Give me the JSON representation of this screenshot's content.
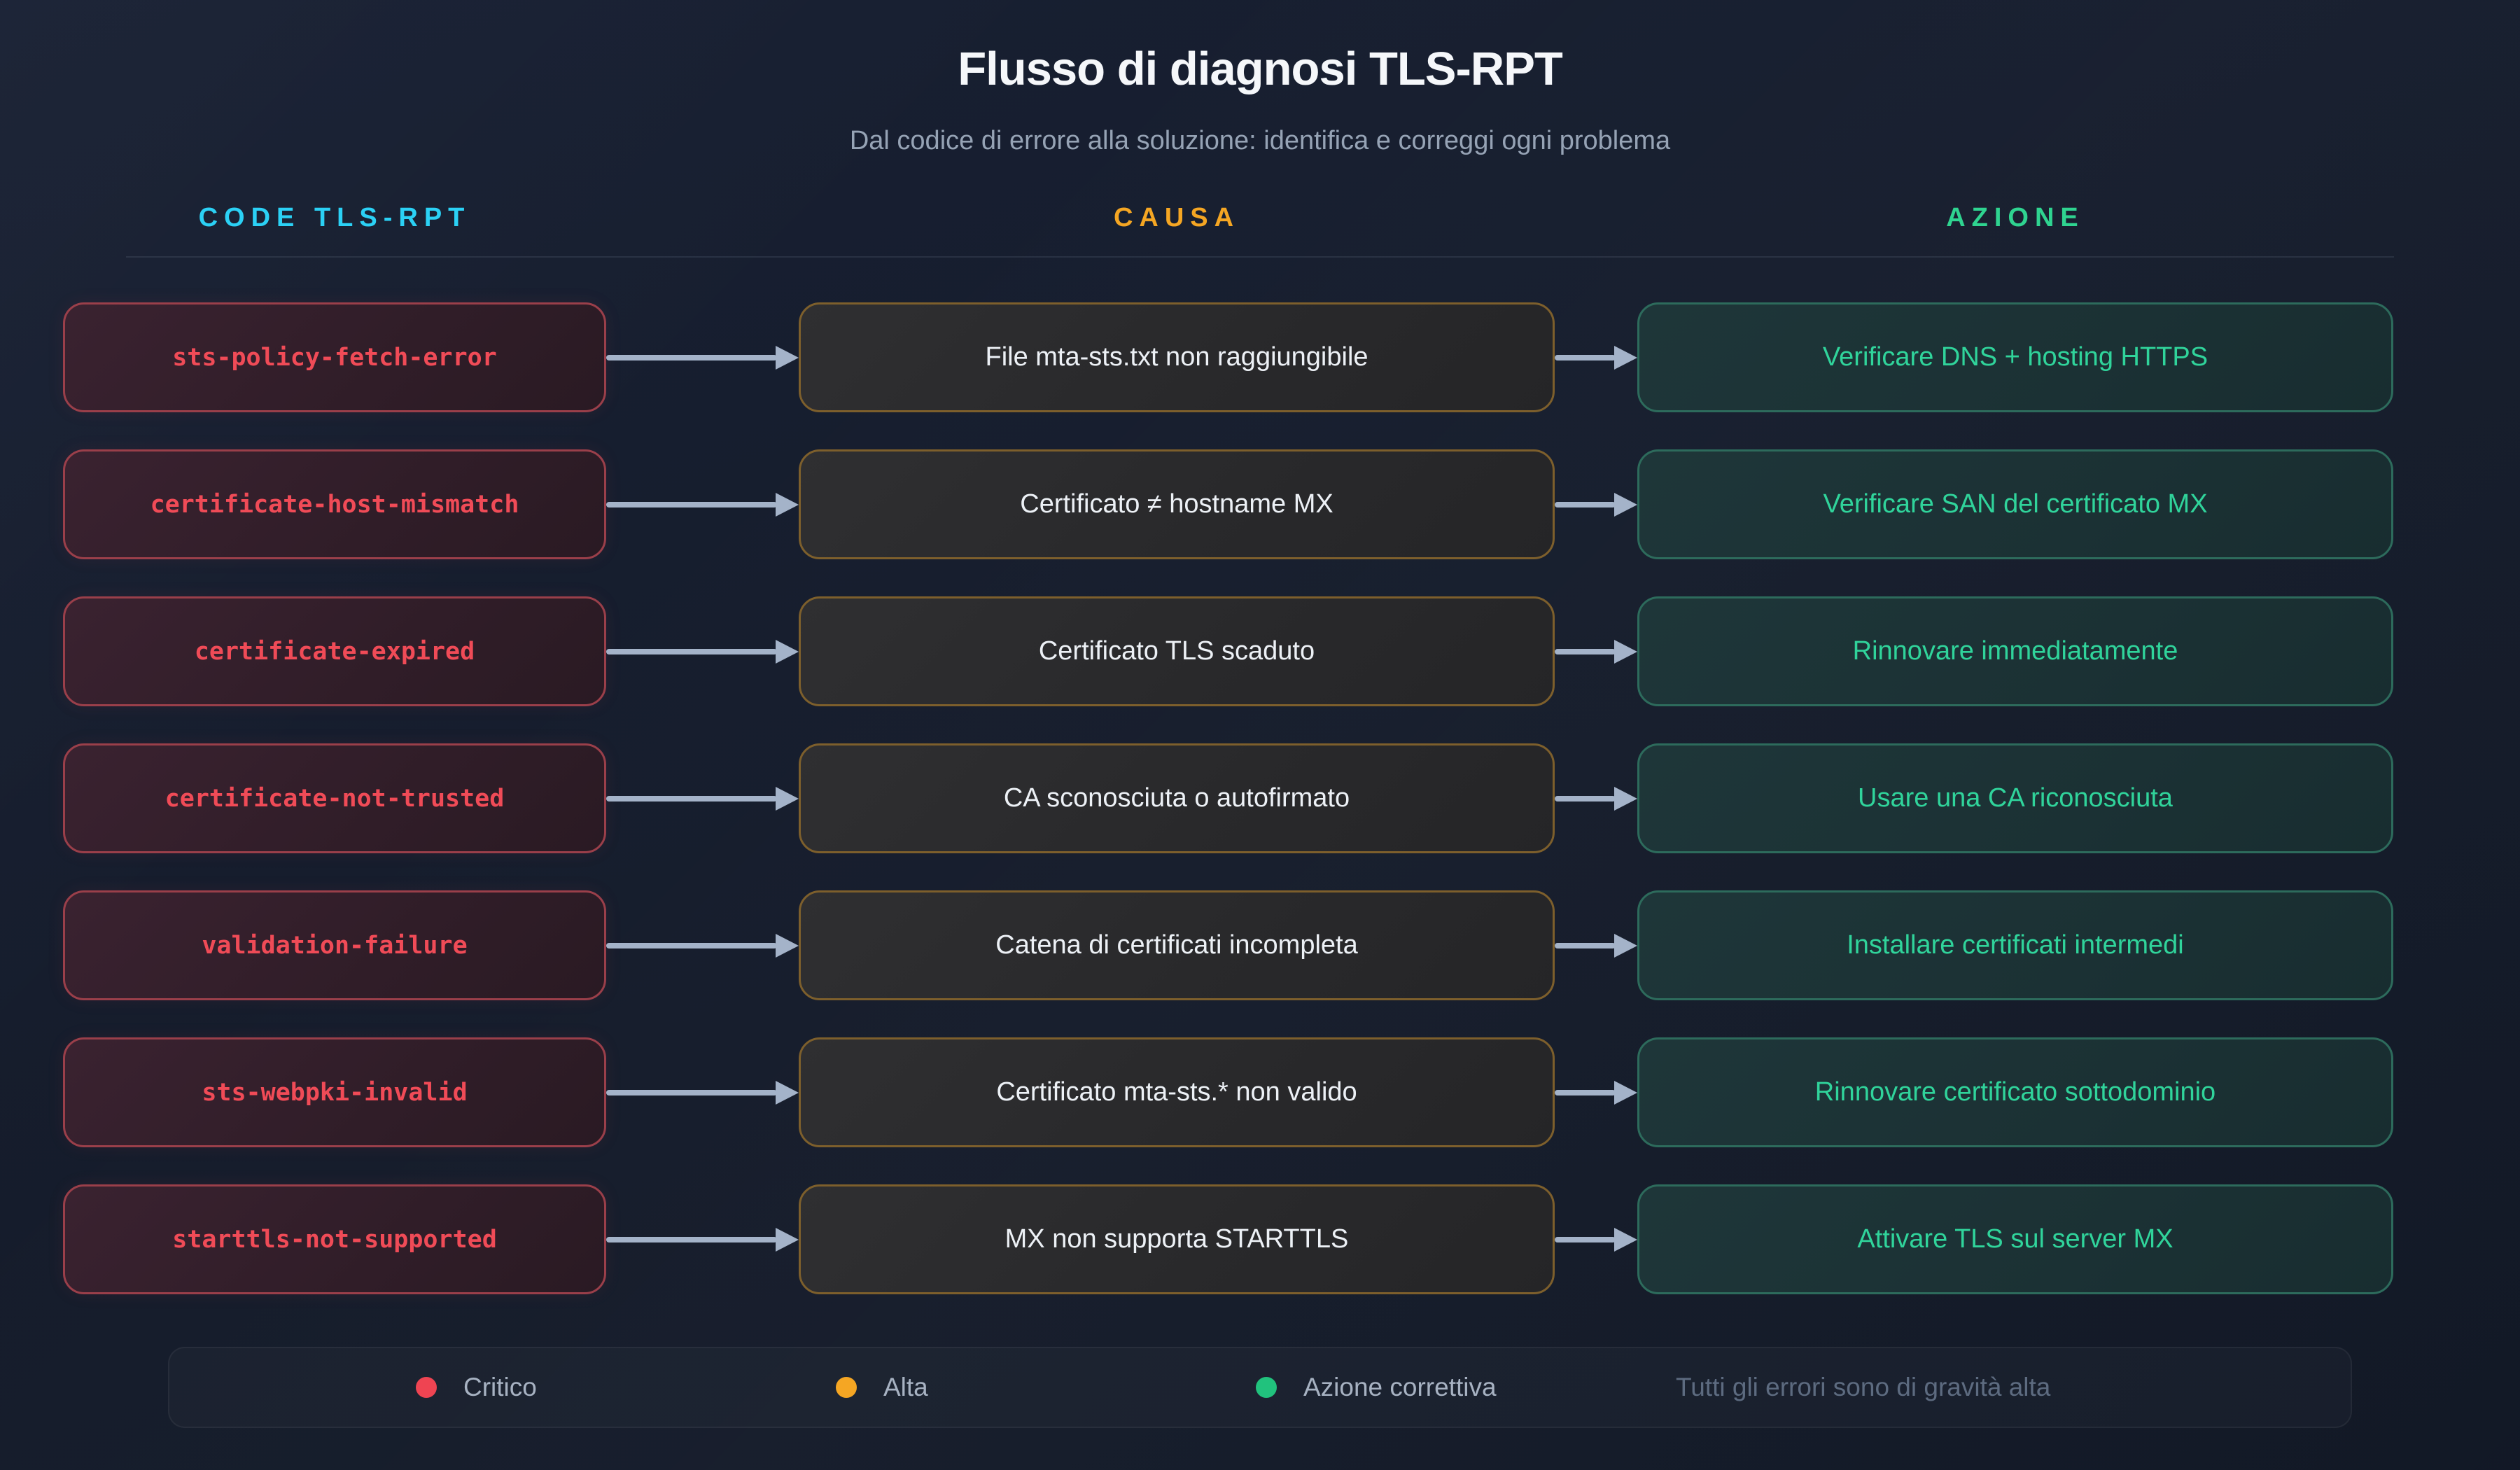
{
  "title": "Flusso di diagnosi TLS-RPT",
  "subtitle": "Dal codice di errore alla soluzione: identifica e correggi ogni problema",
  "columns": [
    {
      "label": "CODE TLS-RPT",
      "color": "#2bd1f5"
    },
    {
      "label": "CAUSA",
      "color": "#f5a623"
    },
    {
      "label": "AZIONE",
      "color": "#2fd490"
    }
  ],
  "rows": [
    {
      "code": "sts-policy-fetch-error",
      "cause": "File mta-sts.txt non raggiungibile",
      "action": "Verificare DNS + hosting HTTPS"
    },
    {
      "code": "certificate-host-mismatch",
      "cause": "Certificato ≠ hostname MX",
      "action": "Verificare SAN del certificato MX"
    },
    {
      "code": "certificate-expired",
      "cause": "Certificato TLS scaduto",
      "action": "Rinnovare immediatamente"
    },
    {
      "code": "certificate-not-trusted",
      "cause": "CA sconosciuta o autofirmato",
      "action": "Usare una CA riconosciuta"
    },
    {
      "code": "validation-failure",
      "cause": "Catena di certificati incompleta",
      "action": "Installare certificati intermedi"
    },
    {
      "code": "sts-webpki-invalid",
      "cause": "Certificato mta-sts.* non valido",
      "action": "Rinnovare certificato sottodominio"
    },
    {
      "code": "starttls-not-supported",
      "cause": "MX non supporta STARTTLS",
      "action": "Attivare TLS sul server MX"
    }
  ],
  "legend": {
    "items": [
      {
        "label": "Critico",
        "color": "#ef4452"
      },
      {
        "label": "Alta",
        "color": "#f5a623"
      },
      {
        "label": "Azione correttiva",
        "color": "#21c27d"
      }
    ],
    "note": "Tutti gli errori sono di gravità alta"
  },
  "colors": {
    "background": "#151c2b",
    "code_box_border": "#9a3f4a",
    "code_text": "#f04b57",
    "cause_box_border": "#7d5f2c",
    "cause_text": "#edf1f6",
    "action_box_border": "#2d6b5c",
    "action_text": "#30d49b",
    "arrow": "#a4b3c9"
  }
}
